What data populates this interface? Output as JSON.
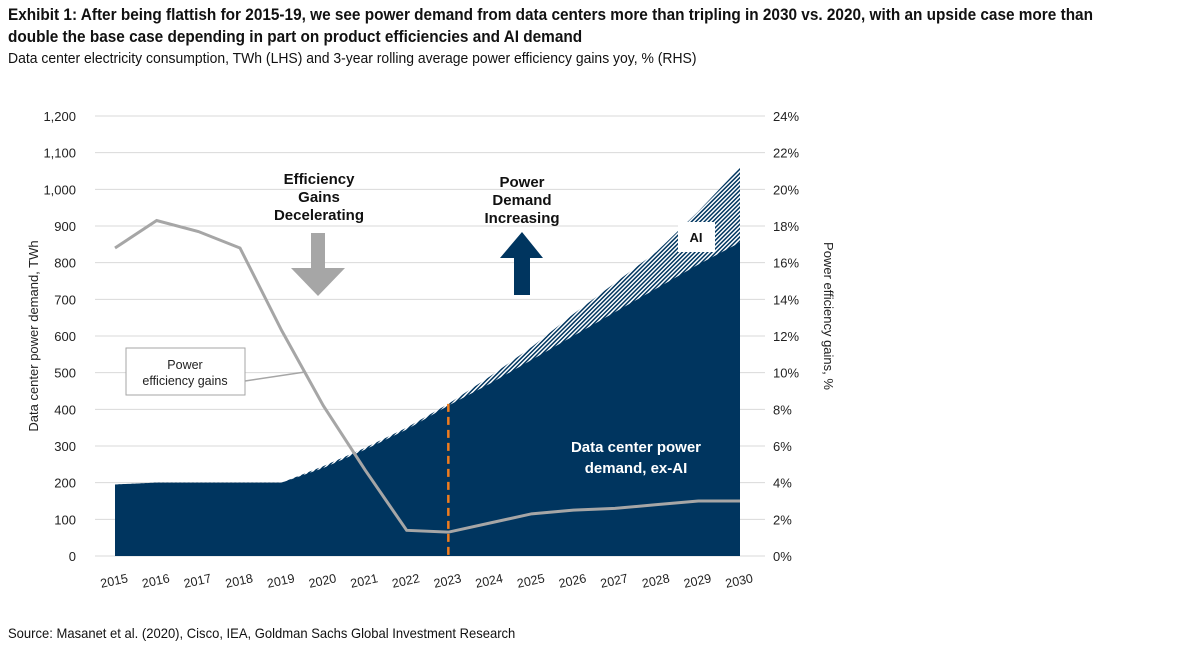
{
  "title": "Exhibit 1: After being flattish for 2015-19, we see power demand from data centers more than tripling in 2030 vs. 2020, with an upside case more than double the base case depending in part on product efficiencies and AI demand",
  "subtitle": "Data center electricity consumption, TWh (LHS) and 3-year rolling average power efficiency gains yoy, % (RHS)",
  "source": "Source: Masanet et al. (2020), Cisco, IEA, Goldman Sachs Global Investment Research",
  "chart_data": {
    "type": "area",
    "categories": [
      "2015",
      "2016",
      "2017",
      "2018",
      "2019",
      "2020",
      "2021",
      "2022",
      "2023",
      "2024",
      "2025",
      "2026",
      "2027",
      "2028",
      "2029",
      "2030"
    ],
    "series": [
      {
        "name": "Data center power demand, ex-AI",
        "axis": "left",
        "values": [
          195,
          200,
          200,
          200,
          200,
          240,
          290,
          345,
          410,
          470,
          535,
          600,
          665,
          730,
          795,
          855
        ],
        "color": "#00355f"
      },
      {
        "name": "AI",
        "axis": "left",
        "values": [
          0,
          0,
          0,
          0,
          0,
          5,
          5,
          5,
          5,
          20,
          35,
          60,
          80,
          100,
          145,
          205
        ],
        "color": "#00355f",
        "pattern": "hatched"
      },
      {
        "name": "Power efficiency gains",
        "axis": "right",
        "type": "line",
        "values": [
          16.8,
          18.3,
          17.7,
          16.8,
          12.3,
          8.2,
          4.7,
          1.4,
          1.3,
          1.8,
          2.3,
          2.5,
          2.6,
          2.8,
          3.0,
          3.0
        ],
        "color": "#a6a6a6"
      }
    ],
    "ylabel": "Data center power demand, TWh",
    "y2label": "Power efficiency gains, %",
    "ylim": [
      0,
      1200
    ],
    "yticks": [
      "0",
      "100",
      "200",
      "300",
      "400",
      "500",
      "600",
      "700",
      "800",
      "900",
      "1,000",
      "1,100",
      "1,200"
    ],
    "y2lim": [
      0,
      24
    ],
    "y2ticks": [
      "0%",
      "2%",
      "4%",
      "6%",
      "8%",
      "10%",
      "12%",
      "14%",
      "16%",
      "18%",
      "20%",
      "22%",
      "24%"
    ],
    "grid": true,
    "forecast_marker": "2023",
    "annotations": {
      "efficiency": "Efficiency Gains Decelerating",
      "demand": "Power Demand Increasing",
      "ai": "AI",
      "exai": "Data center power demand, ex-AI",
      "line_label": "Power efficiency gains"
    }
  }
}
